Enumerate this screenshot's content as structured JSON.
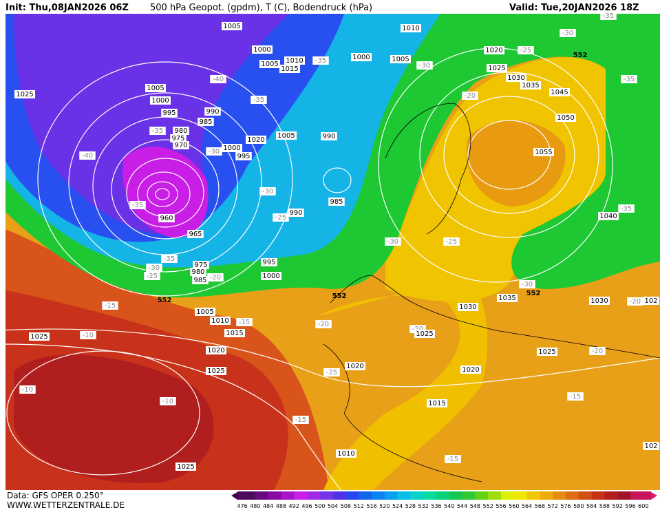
{
  "header": {
    "init": "Init: Thu,08JAN2026 06Z",
    "title": "500 hPa Geopot. (gpdm), T (C), Bodendruck (hPa)",
    "valid": "Valid: Tue,20JAN2026 18Z"
  },
  "footer": {
    "data": "Data: GFS OPER 0.250°",
    "site": "WWW.WETTERZENTRALE.DE"
  },
  "colorbar": {
    "labels": [
      476,
      480,
      484,
      488,
      492,
      496,
      500,
      504,
      508,
      512,
      516,
      520,
      524,
      528,
      532,
      536,
      540,
      544,
      548,
      552,
      556,
      560,
      564,
      568,
      572,
      576,
      580,
      584,
      588,
      592,
      596,
      600
    ],
    "colors": [
      "#4b0a5a",
      "#6a0a82",
      "#8a0aa5",
      "#aa14c8",
      "#c81ee6",
      "#a02ae6",
      "#7832e6",
      "#5032e6",
      "#2846f0",
      "#1464f0",
      "#0a82f0",
      "#0aa0f0",
      "#0abee6",
      "#0ad2c8",
      "#0adca0",
      "#0ad278",
      "#14c850",
      "#32c832",
      "#64d214",
      "#a0dc0a",
      "#dcf000",
      "#f0e600",
      "#f0c800",
      "#f0aa0a",
      "#e68c14",
      "#dc6e14",
      "#d25014",
      "#c83214",
      "#b41e1e",
      "#a01428",
      "#c8145a"
    ]
  },
  "map": {
    "pressure_labels": [
      "1005",
      "1010",
      "1020",
      "1000",
      "1005",
      "1010",
      "1015",
      "1000",
      "1005",
      "1025",
      "1030",
      "1035",
      "1045",
      "1025",
      "1005",
      "1000",
      "995",
      "990",
      "985",
      "980",
      "975",
      "970",
      "1050",
      "1020",
      "1005",
      "990",
      "1000",
      "995",
      "1055",
      "985",
      "960",
      "990",
      "965",
      "1040",
      "975",
      "980",
      "985",
      "995",
      "1000",
      "1030",
      "1035",
      "1030",
      "1005",
      "1010",
      "1015",
      "1025",
      "1025",
      "1020",
      "1025",
      "1020",
      "1020",
      "1025",
      "1015",
      "1010",
      "1025",
      "102",
      "102"
    ],
    "temperature_labels": [
      "-35",
      "-30",
      "-25",
      "-35",
      "-30",
      "-40",
      "-35",
      "-20",
      "-35",
      "-35",
      "-40",
      "-30",
      "-30",
      "-25",
      "-35",
      "-25",
      "-30",
      "-35",
      "-35",
      "-30",
      "-25",
      "-20",
      "-30",
      "-15",
      "-15",
      "-10",
      "-20",
      "-20",
      "-25",
      "-20",
      "-10",
      "-10",
      "-15",
      "-15",
      "-15",
      "-20"
    ],
    "geopotential_labels": [
      "552",
      "552",
      "552",
      "552"
    ]
  }
}
